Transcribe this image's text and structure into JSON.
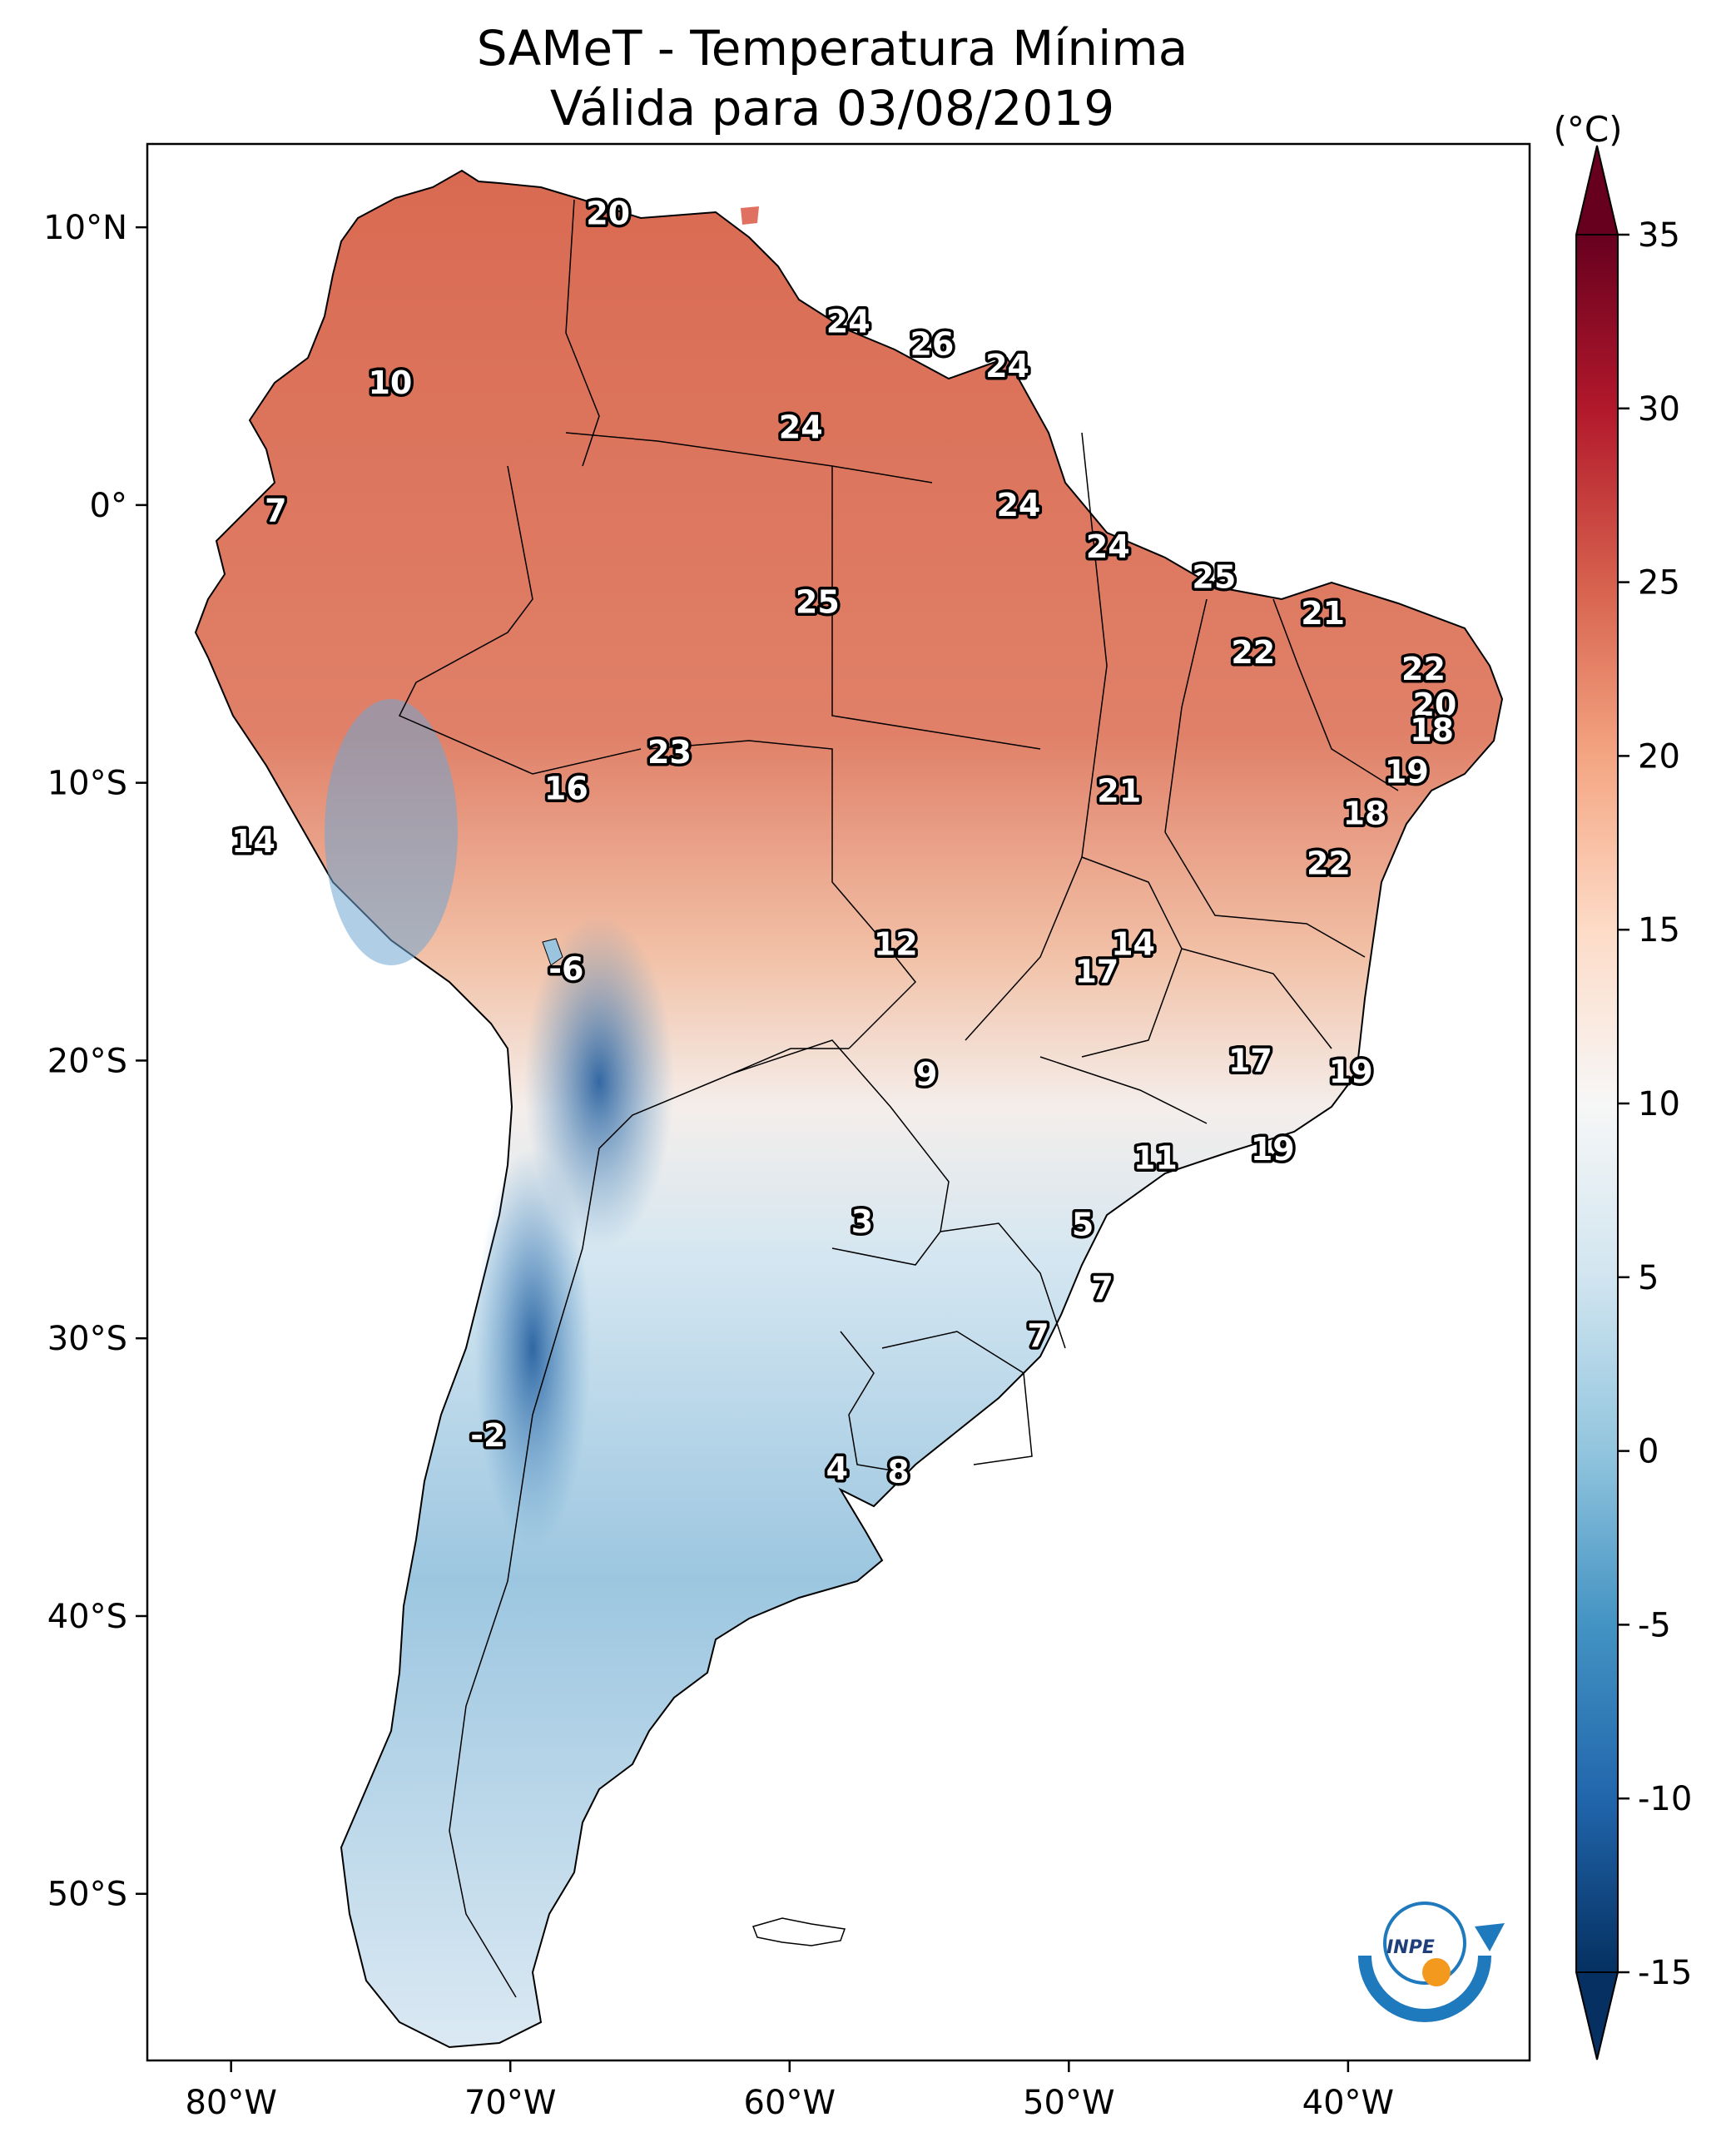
{
  "title": {
    "line1": "SAMeT - Temperatura Mínima",
    "line2": "Válida para 03/08/2019"
  },
  "map": {
    "longitude_ticks": [
      {
        "lon": -80,
        "label": "80°W"
      },
      {
        "lon": -70,
        "label": "70°W"
      },
      {
        "lon": -60,
        "label": "60°W"
      },
      {
        "lon": -50,
        "label": "50°W"
      },
      {
        "lon": -40,
        "label": "40°W"
      }
    ],
    "latitude_ticks": [
      {
        "lat": 10,
        "label": "10°N"
      },
      {
        "lat": 0,
        "label": "0°"
      },
      {
        "lat": -10,
        "label": "10°S"
      },
      {
        "lat": -20,
        "label": "20°S"
      },
      {
        "lat": -30,
        "label": "30°S"
      },
      {
        "lat": -40,
        "label": "40°S"
      },
      {
        "lat": -50,
        "label": "50°S"
      }
    ],
    "extent": {
      "lon_min": -83,
      "lon_max": -33.5,
      "lat_min": -56,
      "lat_max": 13
    }
  },
  "colorbar": {
    "unit": "(°C)",
    "range": [
      -15,
      35
    ],
    "ticks": [
      {
        "value": 35,
        "label": "35"
      },
      {
        "value": 30,
        "label": "30"
      },
      {
        "value": 25,
        "label": "25"
      },
      {
        "value": 20,
        "label": "20"
      },
      {
        "value": 15,
        "label": "15"
      },
      {
        "value": 10,
        "label": "10"
      },
      {
        "value": 5,
        "label": "5"
      },
      {
        "value": 0,
        "label": "0"
      },
      {
        "value": -5,
        "label": "-5"
      },
      {
        "value": -10,
        "label": "-10"
      },
      {
        "value": -15,
        "label": "-15"
      }
    ],
    "colormap": "RdBu_r",
    "over_color": "#67001f",
    "under_color": "#053061"
  },
  "chart_data": {
    "type": "heatmap",
    "title": "SAMeT - Temperatura Mínima Válida para 03/08/2019",
    "variable": "Temperatura Mínima",
    "unit": "°C",
    "date": "03/08/2019",
    "labeled_values": [
      {
        "lon": -66.5,
        "lat": 10.5,
        "value": 20,
        "label": "20"
      },
      {
        "lon": -57.9,
        "lat": 6.6,
        "value": 24,
        "label": "24"
      },
      {
        "lon": -54.9,
        "lat": 5.8,
        "value": 26,
        "label": "26"
      },
      {
        "lon": -52.2,
        "lat": 5.0,
        "value": 24,
        "label": "24"
      },
      {
        "lon": -74.3,
        "lat": 4.4,
        "value": 10,
        "label": "10"
      },
      {
        "lon": -59.6,
        "lat": 2.8,
        "value": 24,
        "label": "24"
      },
      {
        "lon": -51.8,
        "lat": 0.0,
        "value": 24,
        "label": "24"
      },
      {
        "lon": -78.4,
        "lat": -0.2,
        "value": 7,
        "label": "7"
      },
      {
        "lon": -48.6,
        "lat": -1.5,
        "value": 24,
        "label": "24"
      },
      {
        "lon": -44.8,
        "lat": -2.6,
        "value": 25,
        "label": "25"
      },
      {
        "lon": -59.0,
        "lat": -3.5,
        "value": 25,
        "label": "25"
      },
      {
        "lon": -40.9,
        "lat": -3.9,
        "value": 21,
        "label": "21"
      },
      {
        "lon": -43.4,
        "lat": -5.3,
        "value": 22,
        "label": "22"
      },
      {
        "lon": -37.3,
        "lat": -5.9,
        "value": 22,
        "label": "22"
      },
      {
        "lon": -36.9,
        "lat": -7.2,
        "value": 20,
        "label": "20"
      },
      {
        "lon": -37.0,
        "lat": -8.1,
        "value": 18,
        "label": "18"
      },
      {
        "lon": -64.3,
        "lat": -8.9,
        "value": 23,
        "label": "23"
      },
      {
        "lon": -37.9,
        "lat": -9.6,
        "value": 19,
        "label": "19"
      },
      {
        "lon": -68.0,
        "lat": -10.2,
        "value": 16,
        "label": "16"
      },
      {
        "lon": -48.2,
        "lat": -10.3,
        "value": 21,
        "label": "21"
      },
      {
        "lon": -39.4,
        "lat": -11.1,
        "value": 18,
        "label": "18"
      },
      {
        "lon": -79.2,
        "lat": -12.1,
        "value": 14,
        "label": "14"
      },
      {
        "lon": -40.7,
        "lat": -12.9,
        "value": 22,
        "label": "22"
      },
      {
        "lon": -56.2,
        "lat": -15.8,
        "value": 12,
        "label": "12"
      },
      {
        "lon": -47.7,
        "lat": -15.8,
        "value": 14,
        "label": "14"
      },
      {
        "lon": -49.0,
        "lat": -16.8,
        "value": 17,
        "label": "17"
      },
      {
        "lon": -68.0,
        "lat": -16.7,
        "value": -6,
        "label": "-6"
      },
      {
        "lon": -43.5,
        "lat": -20.0,
        "value": 17,
        "label": "17"
      },
      {
        "lon": -55.1,
        "lat": -20.5,
        "value": 9,
        "label": "9"
      },
      {
        "lon": -39.9,
        "lat": -20.4,
        "value": 19,
        "label": "19"
      },
      {
        "lon": -42.7,
        "lat": -23.2,
        "value": 19,
        "label": "19"
      },
      {
        "lon": -46.9,
        "lat": -23.5,
        "value": 11,
        "label": "11"
      },
      {
        "lon": -57.4,
        "lat": -25.8,
        "value": 3,
        "label": "3"
      },
      {
        "lon": -49.5,
        "lat": -25.9,
        "value": 5,
        "label": "5"
      },
      {
        "lon": -48.8,
        "lat": -28.2,
        "value": 7,
        "label": "7"
      },
      {
        "lon": -51.1,
        "lat": -29.9,
        "value": 7,
        "label": "7"
      },
      {
        "lon": -70.8,
        "lat": -33.5,
        "value": -2,
        "label": "-2"
      },
      {
        "lon": -58.3,
        "lat": -34.7,
        "value": 4,
        "label": "4"
      },
      {
        "lon": -56.1,
        "lat": -34.8,
        "value": 8,
        "label": "8"
      }
    ],
    "colorbar_range": [
      -15,
      35
    ],
    "xlabel": "",
    "ylabel": "",
    "grid": false
  }
}
